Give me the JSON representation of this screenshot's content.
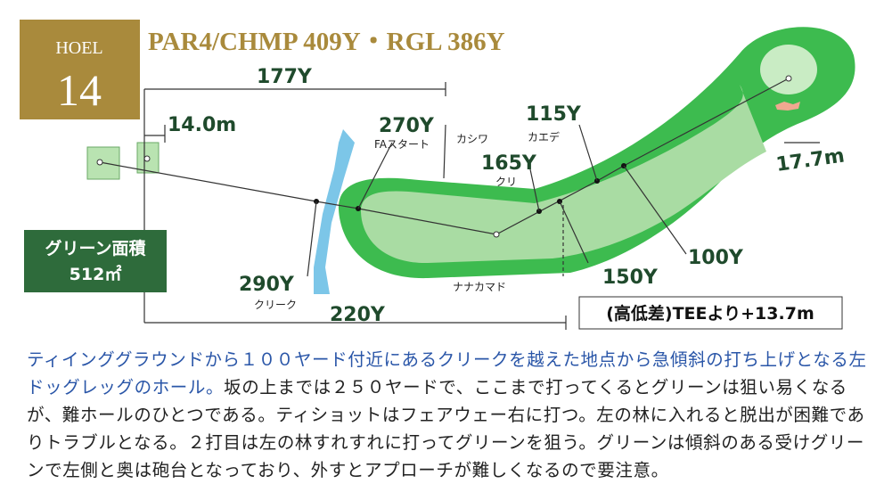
{
  "header": {
    "hole_label": "HOEL",
    "hole_number": "14",
    "title": "PAR4/CHMP 409Y・RGL 386Y"
  },
  "distances": {
    "d177": "177Y",
    "d14": "14.0m",
    "d270": "270Y",
    "d115": "115Y",
    "d165": "165Y",
    "d177m": "17.7m",
    "d290": "290Y",
    "d220": "220Y",
    "d150": "150Y",
    "d100": "100Y"
  },
  "notes": {
    "fa_start": "FAスタート",
    "kashiwa": "カシワ",
    "kaede": "カエデ",
    "kuri": "クリ",
    "creek": "クリーク",
    "nanakamado": "ナナカマド"
  },
  "green_area": {
    "label": "グリーン面積",
    "value": "512㎡"
  },
  "elevation": "(高低差)TEEより+13.7m",
  "description": {
    "highlight": "ティインググラウンドから１００ヤード付近にあるクリークを越えた地点から急傾斜の打ち上げとなる左ドッグレッグのホール。",
    "text": "坂の上までは２５０ヤードで、ここまで打ってくるとグリーンは狙い易くなるが、難ホールのひとつである。ティショットはフェアウェー右に打つ。左の林に入れると脱出が困難でありトラブルとなる。２打目は左の林すれすれに打ってグリーンを狙う。グリーンは傾斜のある受けグリーンで左側と奥は砲台となっており、外すとアプローチが難しくなるので要注意。"
  }
}
